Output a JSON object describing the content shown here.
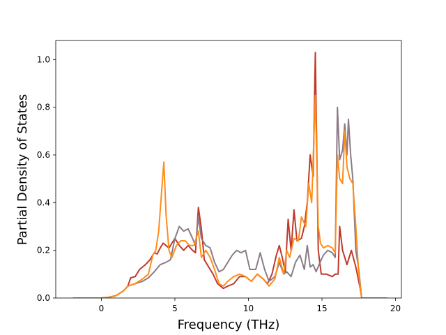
{
  "chart_data": {
    "type": "line",
    "title": "",
    "xlabel": "Frequency (THz)",
    "ylabel": "Partial Density of States",
    "xlim": [
      -3.1,
      20.4
    ],
    "ylim": [
      0.0,
      1.08
    ],
    "xticks": [
      0,
      5,
      10,
      15,
      20
    ],
    "yticks": [
      0.0,
      0.2,
      0.4,
      0.6,
      0.8,
      1.0
    ],
    "xtick_labels": [
      "0",
      "5",
      "10",
      "15",
      "20"
    ],
    "ytick_labels": [
      "0.0",
      "0.2",
      "0.4",
      "0.6",
      "0.8",
      "1.0"
    ],
    "grid": false,
    "legend": "none",
    "series": [
      {
        "color": "#c0392b",
        "points": [
          [
            -1.9,
            0
          ],
          [
            0,
            0
          ],
          [
            0.5,
            0.003
          ],
          [
            1,
            0.01
          ],
          [
            1.5,
            0.03
          ],
          [
            1.8,
            0.05
          ],
          [
            2,
            0.085
          ],
          [
            2.3,
            0.09
          ],
          [
            2.6,
            0.12
          ],
          [
            3,
            0.14
          ],
          [
            3.3,
            0.16
          ],
          [
            3.6,
            0.19
          ],
          [
            3.8,
            0.185
          ],
          [
            4,
            0.21
          ],
          [
            4.2,
            0.23
          ],
          [
            4.4,
            0.22
          ],
          [
            4.6,
            0.21
          ],
          [
            4.8,
            0.23
          ],
          [
            5,
            0.25
          ],
          [
            5.3,
            0.22
          ],
          [
            5.6,
            0.2
          ],
          [
            5.9,
            0.22
          ],
          [
            6.2,
            0.2
          ],
          [
            6.4,
            0.19
          ],
          [
            6.6,
            0.38
          ],
          [
            6.8,
            0.29
          ],
          [
            7,
            0.16
          ],
          [
            7.3,
            0.13
          ],
          [
            7.6,
            0.1
          ],
          [
            7.9,
            0.06
          ],
          [
            8.3,
            0.04
          ],
          [
            8.6,
            0.05
          ],
          [
            9,
            0.06
          ],
          [
            9.4,
            0.09
          ],
          [
            9.8,
            0.09
          ],
          [
            10.2,
            0.07
          ],
          [
            10.6,
            0.1
          ],
          [
            11,
            0.08
          ],
          [
            11.3,
            0.06
          ],
          [
            11.6,
            0.1
          ],
          [
            11.9,
            0.18
          ],
          [
            12.1,
            0.22
          ],
          [
            12.3,
            0.17
          ],
          [
            12.5,
            0.11
          ],
          [
            12.7,
            0.33
          ],
          [
            12.9,
            0.2
          ],
          [
            13.1,
            0.37
          ],
          [
            13.3,
            0.24
          ],
          [
            13.6,
            0.25
          ],
          [
            13.8,
            0.3
          ],
          [
            14,
            0.4
          ],
          [
            14.2,
            0.6
          ],
          [
            14.4,
            0.51
          ],
          [
            14.55,
            1.03
          ],
          [
            14.75,
            0.2
          ],
          [
            14.95,
            0.1
          ],
          [
            15.3,
            0.1
          ],
          [
            15.7,
            0.09
          ],
          [
            15.9,
            0.1
          ],
          [
            16.1,
            0.1
          ],
          [
            16.2,
            0.3
          ],
          [
            16.4,
            0.2
          ],
          [
            16.7,
            0.14
          ],
          [
            17,
            0.2
          ],
          [
            17.3,
            0.13
          ],
          [
            17.6,
            0.04
          ],
          [
            17.7,
            0
          ],
          [
            19.4,
            0
          ]
        ]
      },
      {
        "color": "#8b7b87",
        "points": [
          [
            -1.9,
            0
          ],
          [
            0,
            0
          ],
          [
            0.5,
            0.003
          ],
          [
            1,
            0.01
          ],
          [
            1.5,
            0.03
          ],
          [
            1.8,
            0.05
          ],
          [
            2.3,
            0.06
          ],
          [
            2.8,
            0.07
          ],
          [
            3.2,
            0.085
          ],
          [
            3.6,
            0.11
          ],
          [
            4,
            0.14
          ],
          [
            4.4,
            0.15
          ],
          [
            4.7,
            0.16
          ],
          [
            5,
            0.25
          ],
          [
            5.3,
            0.3
          ],
          [
            5.6,
            0.28
          ],
          [
            5.9,
            0.29
          ],
          [
            6.2,
            0.25
          ],
          [
            6.4,
            0.22
          ],
          [
            6.6,
            0.34
          ],
          [
            6.8,
            0.25
          ],
          [
            7.1,
            0.22
          ],
          [
            7.4,
            0.21
          ],
          [
            7.7,
            0.15
          ],
          [
            8,
            0.11
          ],
          [
            8.3,
            0.12
          ],
          [
            8.6,
            0.15
          ],
          [
            8.9,
            0.18
          ],
          [
            9.2,
            0.2
          ],
          [
            9.5,
            0.19
          ],
          [
            9.8,
            0.2
          ],
          [
            10.1,
            0.12
          ],
          [
            10.5,
            0.12
          ],
          [
            10.8,
            0.19
          ],
          [
            11.1,
            0.12
          ],
          [
            11.4,
            0.07
          ],
          [
            11.8,
            0.09
          ],
          [
            12.1,
            0.15
          ],
          [
            12.4,
            0.1
          ],
          [
            12.6,
            0.11
          ],
          [
            12.9,
            0.09
          ],
          [
            13.2,
            0.15
          ],
          [
            13.5,
            0.18
          ],
          [
            13.8,
            0.12
          ],
          [
            14,
            0.22
          ],
          [
            14.2,
            0.13
          ],
          [
            14.4,
            0.14
          ],
          [
            14.6,
            0.11
          ],
          [
            14.8,
            0.14
          ],
          [
            15.1,
            0.18
          ],
          [
            15.4,
            0.2
          ],
          [
            15.7,
            0.19
          ],
          [
            15.9,
            0.17
          ],
          [
            16.05,
            0.8
          ],
          [
            16.2,
            0.58
          ],
          [
            16.4,
            0.62
          ],
          [
            16.55,
            0.73
          ],
          [
            16.7,
            0.6
          ],
          [
            16.8,
            0.75
          ],
          [
            16.95,
            0.6
          ],
          [
            17.1,
            0.5
          ],
          [
            17.3,
            0.2
          ],
          [
            17.5,
            0.12
          ],
          [
            17.7,
            0
          ],
          [
            19.4,
            0
          ]
        ]
      },
      {
        "color": "#ff8c1a",
        "points": [
          [
            -1.9,
            0
          ],
          [
            0,
            0
          ],
          [
            0.5,
            0.003
          ],
          [
            1,
            0.01
          ],
          [
            1.5,
            0.03
          ],
          [
            1.8,
            0.05
          ],
          [
            2.3,
            0.06
          ],
          [
            2.8,
            0.08
          ],
          [
            3.2,
            0.1
          ],
          [
            3.5,
            0.18
          ],
          [
            3.7,
            0.2
          ],
          [
            3.9,
            0.28
          ],
          [
            4.1,
            0.45
          ],
          [
            4.25,
            0.57
          ],
          [
            4.4,
            0.35
          ],
          [
            4.6,
            0.2
          ],
          [
            4.8,
            0.17
          ],
          [
            5.1,
            0.22
          ],
          [
            5.4,
            0.24
          ],
          [
            5.7,
            0.24
          ],
          [
            6,
            0.22
          ],
          [
            6.3,
            0.22
          ],
          [
            6.6,
            0.28
          ],
          [
            6.8,
            0.17
          ],
          [
            7.1,
            0.2
          ],
          [
            7.4,
            0.17
          ],
          [
            7.7,
            0.12
          ],
          [
            8,
            0.06
          ],
          [
            8.3,
            0.05
          ],
          [
            8.6,
            0.07
          ],
          [
            9,
            0.09
          ],
          [
            9.4,
            0.1
          ],
          [
            9.8,
            0.09
          ],
          [
            10.2,
            0.07
          ],
          [
            10.6,
            0.1
          ],
          [
            11,
            0.08
          ],
          [
            11.4,
            0.05
          ],
          [
            11.8,
            0.08
          ],
          [
            12.1,
            0.17
          ],
          [
            12.4,
            0.1
          ],
          [
            12.6,
            0.2
          ],
          [
            12.8,
            0.17
          ],
          [
            13.1,
            0.25
          ],
          [
            13.4,
            0.24
          ],
          [
            13.6,
            0.34
          ],
          [
            13.9,
            0.3
          ],
          [
            14.1,
            0.48
          ],
          [
            14.3,
            0.4
          ],
          [
            14.55,
            0.85
          ],
          [
            14.75,
            0.3
          ],
          [
            14.9,
            0.23
          ],
          [
            15.1,
            0.21
          ],
          [
            15.4,
            0.22
          ],
          [
            15.7,
            0.21
          ],
          [
            15.9,
            0.19
          ],
          [
            16.05,
            0.6
          ],
          [
            16.2,
            0.5
          ],
          [
            16.4,
            0.48
          ],
          [
            16.55,
            0.7
          ],
          [
            16.7,
            0.55
          ],
          [
            16.9,
            0.5
          ],
          [
            17.1,
            0.48
          ],
          [
            17.3,
            0.3
          ],
          [
            17.5,
            0.1
          ],
          [
            17.7,
            0
          ],
          [
            19.4,
            0
          ]
        ]
      }
    ]
  }
}
